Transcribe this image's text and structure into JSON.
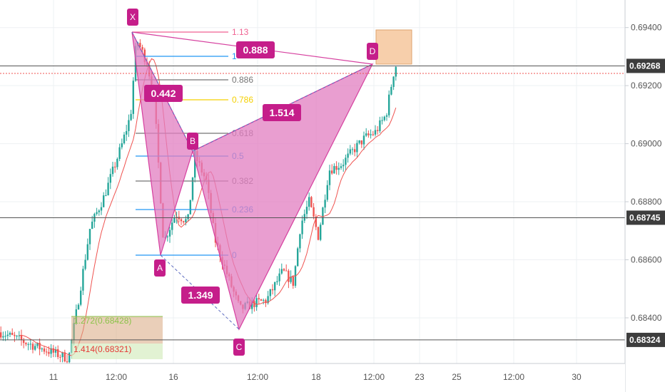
{
  "chart_data": {
    "type": "candlestick",
    "symbol_pattern": "harmonic XABCD",
    "y_axis": {
      "ticks": [
        "0.69400",
        "0.69200",
        "0.69000",
        "0.68800",
        "0.68600",
        "0.68400"
      ],
      "tick_values": [
        0.694,
        0.692,
        0.69,
        0.688,
        0.686,
        0.684
      ],
      "range": [
        0.68255,
        0.69495
      ]
    },
    "x_axis": {
      "ticks": [
        "11",
        "12:00",
        "16",
        "12:00",
        "18",
        "12:00",
        "23",
        "25",
        "12:00",
        "30"
      ]
    },
    "price_tags": [
      {
        "label": "0.69268",
        "value": 0.69268
      },
      {
        "label": "0.68745",
        "value": 0.68745
      },
      {
        "label": "0.68324",
        "value": 0.68324
      }
    ],
    "current_price_line": 0.69242,
    "pattern_points": [
      {
        "label": "X",
        "price": 0.6939
      },
      {
        "label": "A",
        "price": 0.6864
      },
      {
        "label": "B",
        "price": 0.6897
      },
      {
        "label": "C",
        "price": 0.6839
      },
      {
        "label": "D",
        "price": 0.6927
      }
    ],
    "ratios": [
      {
        "label": "0.888"
      },
      {
        "label": "0.442"
      },
      {
        "label": "1.514"
      },
      {
        "label": "1.349"
      }
    ],
    "fib_levels": [
      {
        "label": "1.13",
        "color": "#f06292"
      },
      {
        "label": "1",
        "color": "#2196f3"
      },
      {
        "label": "0.886",
        "color": "#757575"
      },
      {
        "label": "0.786",
        "color": "#f5d000"
      },
      {
        "label": "0.618",
        "color": "#757575"
      },
      {
        "label": "0.5",
        "color": "#2196f3"
      },
      {
        "label": "0.382",
        "color": "#757575"
      },
      {
        "label": "0.236",
        "color": "#2196f3"
      },
      {
        "label": "0",
        "color": "#2196f3"
      }
    ],
    "extension_levels": [
      {
        "label": "1.272(0.68428)",
        "value": 0.68428,
        "color": "#8bc34a"
      },
      {
        "label": "1.414(0.68321)",
        "value": 0.68321,
        "color": "#e53935"
      }
    ],
    "colors": {
      "bull": "#26a69a",
      "bear": "#ef5350",
      "pattern_fill": "#e27ec0",
      "pattern_line": "#d6409f",
      "label_bg": "#c51e8a",
      "ma": "#ef5350",
      "target_box": "#f5c08f"
    }
  }
}
